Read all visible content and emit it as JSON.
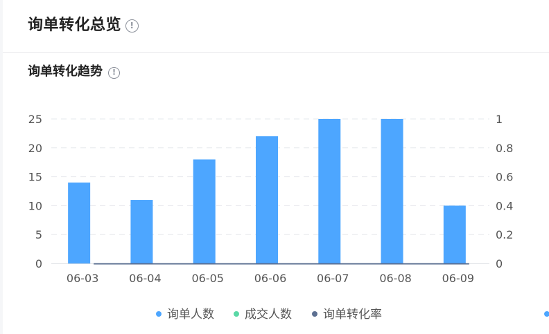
{
  "header": {
    "title": "询单转化总览",
    "info_icon": "info-icon"
  },
  "section": {
    "title": "询单转化趋势",
    "info_icon": "info-icon"
  },
  "chart_data": {
    "type": "bar",
    "categories": [
      "06-03",
      "06-04",
      "06-05",
      "06-06",
      "06-07",
      "06-08",
      "06-09"
    ],
    "series": [
      {
        "name": "询单人数",
        "type": "bar",
        "axis": "left",
        "color": "#4da6ff",
        "values": [
          14,
          11,
          18,
          22,
          25,
          25,
          10
        ]
      },
      {
        "name": "成交人数",
        "type": "bar",
        "axis": "left",
        "color": "#5ad8a6",
        "values": [
          0,
          0,
          0,
          0,
          0,
          0,
          0
        ]
      },
      {
        "name": "询单转化率",
        "type": "line",
        "axis": "right",
        "color": "#5d7092",
        "values": [
          0,
          0,
          0,
          0,
          0,
          0,
          0
        ]
      }
    ],
    "y_left": {
      "ylim": [
        0,
        25
      ],
      "ticks": [
        "0",
        "5",
        "10",
        "15",
        "20",
        "25"
      ]
    },
    "y_right": {
      "ylim": [
        0,
        1
      ],
      "ticks": [
        "0",
        "0.2",
        "0.4",
        "0.6",
        "0.8",
        "1"
      ]
    },
    "grid": true,
    "legend": "bottom-center"
  }
}
